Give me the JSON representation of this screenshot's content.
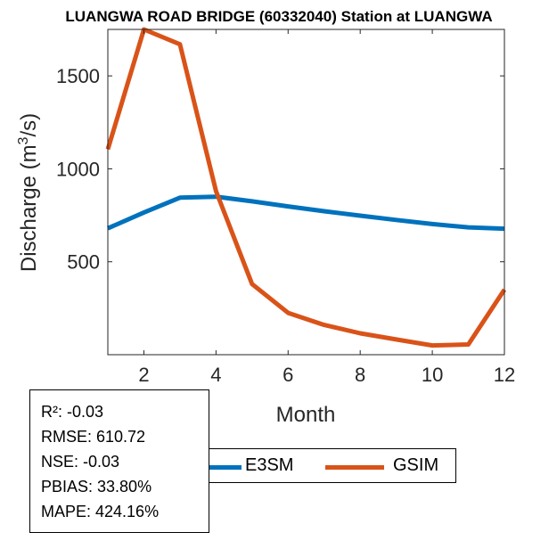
{
  "chart_data": {
    "type": "line",
    "title": "LUANGWA ROAD BRIDGE (60332040)  Station at  LUANGWA",
    "xlabel": "Month",
    "ylabel_main": "Discharge (m",
    "ylabel_sup": "3",
    "ylabel_end": "/s)",
    "xlim": [
      1,
      12
    ],
    "ylim": [
      0,
      1750
    ],
    "xticks": [
      2,
      4,
      6,
      8,
      10,
      12
    ],
    "yticks": [
      500,
      1000,
      1500
    ],
    "x": [
      1,
      2,
      3,
      4,
      5,
      6,
      7,
      8,
      9,
      10,
      11,
      12
    ],
    "series": [
      {
        "name": "E3SM",
        "color": "#0072bd",
        "values": [
          680,
          765,
          845,
          850,
          825,
          798,
          772,
          748,
          725,
          703,
          685,
          678
        ]
      },
      {
        "name": "GSIM",
        "color": "#d95319",
        "values": [
          1105,
          1750,
          1670,
          880,
          380,
          225,
          160,
          115,
          82,
          50,
          55,
          350
        ]
      }
    ]
  },
  "stats": [
    "R²: -0.03",
    "RMSE: 610.72",
    "NSE: -0.03",
    "PBIAS: 33.80%",
    "MAPE: 424.16%"
  ]
}
